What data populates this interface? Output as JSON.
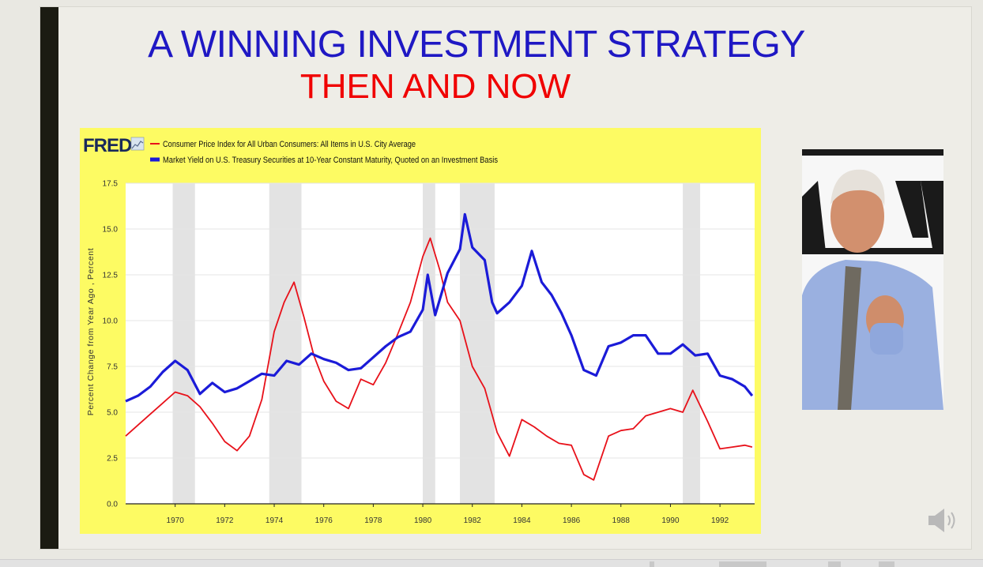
{
  "slide": {
    "title": "A WINNING INVESTMENT STRATEGY",
    "subtitle": "THEN AND NOW"
  },
  "colors": {
    "title": "#1f18c4",
    "subtitle": "#f00000",
    "chart_background": "#fdfb63",
    "cpi_line": "#e8111a",
    "yield_line": "#1b1bd8",
    "recession_band": "#e3e3e3"
  },
  "chart_data": {
    "type": "line",
    "logo": "FRED",
    "title": "",
    "xlabel": "",
    "ylabel": "Percent Change from Year Ago , Percent",
    "xlim": [
      1968.0,
      1993.4
    ],
    "ylim": [
      0,
      17.5
    ],
    "y_ticks": [
      "0.0",
      "2.5",
      "5.0",
      "7.5",
      "10.0",
      "12.5",
      "15.0",
      "17.5"
    ],
    "x_ticks": [
      "1970",
      "1972",
      "1974",
      "1976",
      "1978",
      "1980",
      "1982",
      "1984",
      "1986",
      "1988",
      "1990",
      "1992"
    ],
    "legend_position": "top-left",
    "recessions": [
      [
        1969.9,
        1970.8
      ],
      [
        1973.8,
        1975.1
      ],
      [
        1980.0,
        1980.5
      ],
      [
        1981.5,
        1982.9
      ],
      [
        1990.5,
        1991.2
      ]
    ],
    "series": [
      {
        "name": "Consumer Price Index for All Urban Consumers: All Items in U.S. City Average",
        "color": "#e8111a",
        "x": [
          1968.0,
          1968.5,
          1969.0,
          1969.5,
          1970.0,
          1970.5,
          1971.0,
          1971.5,
          1972.0,
          1972.5,
          1973.0,
          1973.5,
          1974.0,
          1974.4,
          1974.8,
          1975.2,
          1975.6,
          1976.0,
          1976.5,
          1977.0,
          1977.5,
          1978.0,
          1978.5,
          1979.0,
          1979.5,
          1980.0,
          1980.3,
          1980.7,
          1981.0,
          1981.5,
          1982.0,
          1982.5,
          1983.0,
          1983.5,
          1984.0,
          1984.5,
          1985.0,
          1985.5,
          1986.0,
          1986.5,
          1986.9,
          1987.5,
          1988.0,
          1988.5,
          1989.0,
          1989.5,
          1990.0,
          1990.5,
          1990.9,
          1991.5,
          1992.0,
          1992.5,
          1993.0,
          1993.3
        ],
        "values": [
          3.7,
          4.3,
          4.9,
          5.5,
          6.1,
          5.9,
          5.3,
          4.4,
          3.4,
          2.9,
          3.7,
          5.7,
          9.4,
          11.0,
          12.1,
          10.2,
          8.1,
          6.7,
          5.6,
          5.2,
          6.8,
          6.5,
          7.7,
          9.3,
          11.0,
          13.5,
          14.5,
          12.7,
          11.0,
          10.0,
          7.5,
          6.3,
          3.9,
          2.6,
          4.6,
          4.2,
          3.7,
          3.3,
          3.2,
          1.6,
          1.3,
          3.7,
          4.0,
          4.1,
          4.8,
          5.0,
          5.2,
          5.0,
          6.2,
          4.5,
          3.0,
          3.1,
          3.2,
          3.1
        ]
      },
      {
        "name": "Market Yield on U.S. Treasury Securities at 10-Year Constant Maturity, Quoted on an Investment Basis",
        "color": "#1b1bd8",
        "x": [
          1968.0,
          1968.5,
          1969.0,
          1969.5,
          1970.0,
          1970.5,
          1971.0,
          1971.5,
          1972.0,
          1972.5,
          1973.0,
          1973.5,
          1974.0,
          1974.5,
          1975.0,
          1975.5,
          1976.0,
          1976.5,
          1977.0,
          1977.5,
          1978.0,
          1978.5,
          1979.0,
          1979.5,
          1980.0,
          1980.2,
          1980.5,
          1981.0,
          1981.5,
          1981.7,
          1982.0,
          1982.5,
          1982.8,
          1983.0,
          1983.5,
          1984.0,
          1984.4,
          1984.8,
          1985.2,
          1985.6,
          1986.0,
          1986.5,
          1987.0,
          1987.5,
          1988.0,
          1988.5,
          1989.0,
          1989.5,
          1990.0,
          1990.5,
          1991.0,
          1991.5,
          1992.0,
          1992.5,
          1993.0,
          1993.3
        ],
        "values": [
          5.6,
          5.9,
          6.4,
          7.2,
          7.8,
          7.3,
          6.0,
          6.6,
          6.1,
          6.3,
          6.7,
          7.1,
          7.0,
          7.8,
          7.6,
          8.2,
          7.9,
          7.7,
          7.3,
          7.4,
          8.0,
          8.6,
          9.1,
          9.4,
          10.6,
          12.5,
          10.3,
          12.6,
          13.9,
          15.8,
          14.0,
          13.3,
          11.0,
          10.4,
          11.0,
          11.9,
          13.8,
          12.1,
          11.4,
          10.4,
          9.2,
          7.3,
          7.0,
          8.6,
          8.8,
          9.2,
          9.2,
          8.2,
          8.2,
          8.7,
          8.1,
          8.2,
          7.0,
          6.8,
          6.4,
          5.9
        ]
      }
    ]
  }
}
